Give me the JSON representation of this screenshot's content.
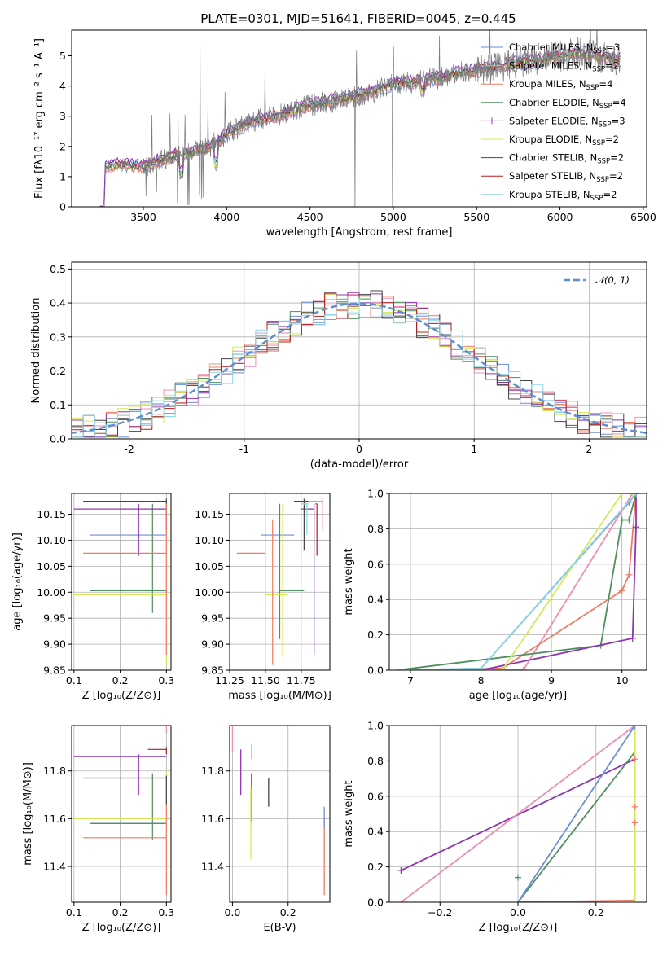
{
  "title": "PLATE=0301, MJD=51641, FIBERID=0045, z=0.445",
  "legend": [
    {
      "text": "Chabrier MILES, N",
      "sub": "SSP",
      "tail": "=3",
      "color": "#6a8fd6",
      "marker": "none"
    },
    {
      "text": "Salpeter MILES, N",
      "sub": "SSP",
      "tail": "=2",
      "color": "#f08db6",
      "marker": "none"
    },
    {
      "text": "Kroupa MILES, N",
      "sub": "SSP",
      "tail": "=4",
      "color": "#f07b63",
      "marker": "none"
    },
    {
      "text": "Chabrier ELODIE, N",
      "sub": "SSP",
      "tail": "=4",
      "color": "#4f8f5f",
      "marker": "none"
    },
    {
      "text": "Salpeter ELODIE, N",
      "sub": "SSP",
      "tail": "=3",
      "color": "#8e35b0",
      "marker": "plus"
    },
    {
      "text": "Kroupa ELODIE, N",
      "sub": "SSP",
      "tail": "=2",
      "color": "#d4ea55",
      "marker": "none"
    },
    {
      "text": "Chabrier STELIB, N",
      "sub": "SSP",
      "tail": "=2",
      "color": "#444444",
      "marker": "none"
    },
    {
      "text": "Salpeter STELIB, N",
      "sub": "SSP",
      "tail": "=2",
      "color": "#b51d1d",
      "marker": "none"
    },
    {
      "text": "Kroupa STELIB, N",
      "sub": "SSP",
      "tail": "=2",
      "color": "#8fd6e6",
      "marker": "none"
    }
  ],
  "chart_data": [
    {
      "id": "spectrum",
      "type": "line",
      "xlabel": "wavelength [Angstrom, rest frame]",
      "ylabel": "Flux [fλ10⁻¹⁷ erg cm⁻² s⁻¹ A⁻¹]",
      "xlim": [
        3070,
        6520
      ],
      "ylim": [
        0,
        5.85
      ],
      "xticks": [
        3500,
        4000,
        4500,
        5000,
        5500,
        6000,
        6500
      ],
      "yticks": [
        0,
        1,
        2,
        3,
        4,
        5
      ],
      "continuum": {
        "x": [
          3270,
          3300,
          3400,
          3500,
          3600,
          3700,
          3800,
          3900,
          4000,
          4100,
          4200,
          4300,
          4400,
          4500,
          4600,
          4700,
          4800,
          4900,
          5000,
          5100,
          5200,
          5300,
          5400,
          5500,
          5600,
          5700,
          5800,
          5900,
          6000,
          6100,
          6200,
          6300,
          6360
        ],
        "y": [
          1.3,
          1.35,
          1.4,
          1.3,
          1.55,
          1.7,
          1.8,
          2.0,
          2.4,
          2.7,
          2.9,
          3.0,
          3.2,
          3.35,
          3.45,
          3.55,
          3.7,
          3.85,
          4.1,
          4.1,
          4.2,
          4.3,
          4.45,
          4.5,
          4.6,
          4.7,
          4.8,
          4.85,
          5.0,
          5.1,
          5.0,
          4.9,
          4.85
        ]
      }
    },
    {
      "id": "residuals",
      "type": "line",
      "xlabel": "(data-model)/error",
      "ylabel": "Normed distribution",
      "xlim": [
        -2.5,
        2.5
      ],
      "ylim": [
        0,
        0.52
      ],
      "xticks": [
        -2,
        -1,
        0,
        1,
        2
      ],
      "yticks": [
        0.0,
        0.1,
        0.2,
        0.3,
        0.4,
        0.5
      ],
      "gauss_label": "𝒩(0, 1)",
      "gauss_color": "#5f8dd3"
    },
    {
      "id": "age_Z",
      "type": "scatter",
      "xlabel": "Z [log₁₀(Z/Z⊙)]",
      "ylabel": "age  [log₁₀(age/yr)]",
      "xlim": [
        0.095,
        0.31
      ],
      "ylim": [
        9.85,
        10.19
      ],
      "xticks": [
        0.1,
        0.2,
        0.3
      ],
      "yticks": [
        9.85,
        9.9,
        9.95,
        10.0,
        10.05,
        10.1,
        10.15
      ],
      "ytick_labels": [
        "9.85",
        "9.90",
        "9.95",
        "10.00",
        "10.05",
        "10.10",
        "10.15"
      ],
      "xticklabels": [
        "0.1",
        "0.2",
        "0.3"
      ],
      "points": [
        {
          "s": 0,
          "x": [
            0.135,
            0.3
          ],
          "y": [
            10.11,
            10.11
          ]
        },
        {
          "s": 1,
          "x": [
            0.28,
            0.3
          ],
          "y": [
            10.175,
            10.175
          ],
          "yv": [
            10.175,
            10.175
          ]
        },
        {
          "s": 3,
          "x": [
            0.135,
            0.3
          ],
          "y": [
            10.003,
            10.003
          ],
          "yv": [
            9.96,
            10.17
          ],
          "vx": 0.27
        },
        {
          "s": 4,
          "x": [
            0.1,
            0.3
          ],
          "y": [
            10.16,
            10.16
          ],
          "yv": [
            10.07,
            10.17
          ],
          "vx": 0.24
        },
        {
          "s": 5,
          "x": [
            0.1,
            0.3
          ],
          "y": [
            9.995,
            9.995
          ],
          "yv": [
            9.86,
            10.17
          ],
          "vx": 0.3
        },
        {
          "s": 6,
          "x": [
            0.12,
            0.3
          ],
          "y": [
            10.175,
            10.175
          ],
          "yv": [
            10.12,
            10.18
          ],
          "vx": 0.3
        },
        {
          "s": 2,
          "x": [
            0.12,
            0.3
          ],
          "y": [
            10.075,
            10.075
          ],
          "yv": [
            9.88,
            10.17
          ],
          "vx": 0.3
        }
      ]
    },
    {
      "id": "age_mass",
      "type": "scatter",
      "xlabel": "mass [log₁₀(M/M⊙)]",
      "xlim": [
        11.25,
        11.95
      ],
      "ylim": [
        9.85,
        10.19
      ],
      "xticks": [
        11.25,
        11.5,
        11.75
      ],
      "xticklabels": [
        "11.25",
        "11.50",
        "11.75"
      ],
      "yticks": [
        9.85,
        9.9,
        9.95,
        10.0,
        10.05,
        10.1,
        10.15
      ],
      "ytick_labels": [
        "9.85",
        "9.90",
        "9.95",
        "10.00",
        "10.05",
        "10.10",
        "10.15"
      ]
    },
    {
      "id": "weights_age",
      "type": "line",
      "xlabel": "age  [log₁₀(age/yr)]",
      "ylabel": "mass weight",
      "xlim": [
        6.7,
        10.35
      ],
      "ylim": [
        0,
        1
      ],
      "xticks": [
        7,
        8,
        9,
        10
      ],
      "yticks": [
        0.0,
        0.2,
        0.4,
        0.6,
        0.8,
        1.0
      ],
      "series": [
        {
          "s": 0,
          "x": [
            6.8,
            8.0,
            10.1,
            10.2
          ],
          "y": [
            0,
            0.01,
            0.95,
            1.0
          ]
        },
        {
          "s": 1,
          "x": [
            6.8,
            8.6,
            10.15
          ],
          "y": [
            0,
            0.0,
            1.0
          ]
        },
        {
          "s": 2,
          "x": [
            6.8,
            8.3,
            10.0,
            10.1,
            10.2
          ],
          "y": [
            0,
            0.01,
            0.45,
            0.54,
            1.0
          ]
        },
        {
          "s": 3,
          "x": [
            6.8,
            9.7,
            10.0,
            10.1,
            10.2
          ],
          "y": [
            0,
            0.14,
            0.85,
            0.85,
            1.0
          ]
        },
        {
          "s": 4,
          "x": [
            6.8,
            8.0,
            10.15,
            10.2,
            10.2
          ],
          "y": [
            0,
            0.0,
            0.18,
            0.81,
            1.0
          ]
        },
        {
          "s": 5,
          "x": [
            6.8,
            8.3,
            10.0,
            10.15
          ],
          "y": [
            0,
            0.0,
            1.0,
            1.0
          ]
        },
        {
          "s": 8,
          "x": [
            6.8,
            8.0,
            10.2
          ],
          "y": [
            0,
            0.01,
            1.0
          ]
        }
      ]
    },
    {
      "id": "mass_Z",
      "type": "scatter",
      "xlabel": "Z [log₁₀(Z/Z⊙)]",
      "ylabel": "mass [log₁₀(M/M⊙)]",
      "xlim": [
        0.095,
        0.31
      ],
      "ylim": [
        11.25,
        11.99
      ],
      "xticks": [
        0.1,
        0.2,
        0.3
      ],
      "xticklabels": [
        "0.1",
        "0.2",
        "0.3"
      ],
      "yticks": [
        11.4,
        11.6,
        11.8
      ],
      "ytick_labels": [
        "11.4",
        "11.6",
        "11.8"
      ]
    },
    {
      "id": "mass_ebv",
      "type": "scatter",
      "xlabel": "E(B-V)",
      "xlim": [
        -0.01,
        0.35
      ],
      "ylim": [
        11.25,
        11.99
      ],
      "xticks": [
        0.0,
        0.2
      ],
      "xticklabels": [
        "0.0",
        "0.2"
      ],
      "yticks": [
        11.4,
        11.6,
        11.8
      ],
      "ytick_labels": [
        "11.4",
        "11.6",
        "11.8"
      ]
    },
    {
      "id": "weights_Z",
      "type": "line",
      "xlabel": "Z [log₁₀(Z/Z⊙)]",
      "ylabel": "mass weight",
      "xlim": [
        -0.33,
        0.33
      ],
      "ylim": [
        0,
        1
      ],
      "xticks": [
        -0.2,
        0.0,
        0.2
      ],
      "xticklabels": [
        "−0.2",
        "0.0",
        "0.2"
      ],
      "yticks": [
        0.0,
        0.2,
        0.4,
        0.6,
        0.8,
        1.0
      ],
      "series": [
        {
          "s": 4,
          "x": [
            -0.3,
            0.3
          ],
          "y": [
            0.18,
            0.81
          ]
        },
        {
          "s": 1,
          "x": [
            -0.3,
            0.3
          ],
          "y": [
            0.0,
            1.0
          ]
        },
        {
          "s": 3,
          "x": [
            0.0,
            0.3
          ],
          "y": [
            0.0,
            0.85
          ]
        },
        {
          "s": 0,
          "x": [
            0.0,
            0.3
          ],
          "y": [
            0.0,
            1.0
          ]
        },
        {
          "s": 2,
          "x": [
            0.0,
            0.3
          ],
          "y": [
            0.0,
            0.01
          ]
        },
        {
          "s": 5,
          "x": [
            0.3,
            0.3
          ],
          "y": [
            0.0,
            1.0
          ]
        }
      ]
    }
  ]
}
